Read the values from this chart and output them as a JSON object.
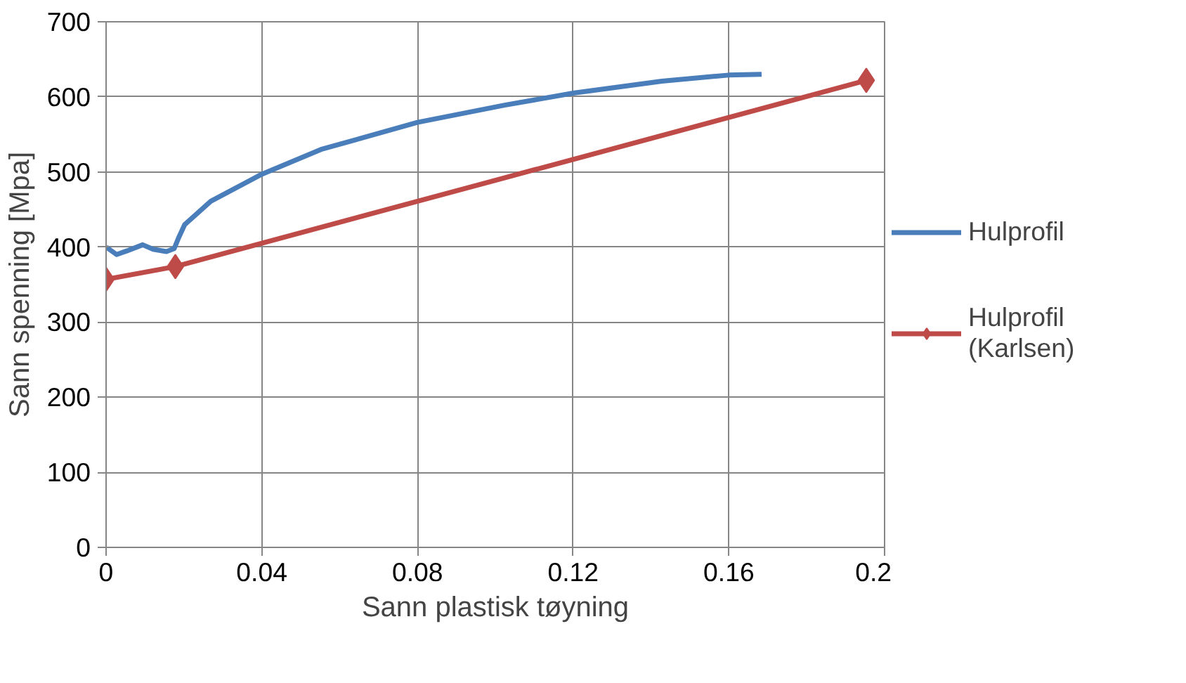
{
  "chart_data": {
    "type": "line",
    "xlabel": "Sann plastisk tøyning",
    "ylabel": "Sann spenning [Mpa]",
    "xlim": [
      0,
      0.2
    ],
    "xticks": [
      0,
      0.04,
      0.08,
      0.12,
      0.16,
      0.2
    ],
    "ylim": [
      0,
      700
    ],
    "yticks": [
      0,
      100,
      200,
      300,
      400,
      500,
      600,
      700
    ],
    "grid": true,
    "legend": "right",
    "series": [
      {
        "name": "Hulprofil",
        "color": "#4a7ebb",
        "marker": "none",
        "x": [
          0,
          0.0027,
          0.0054,
          0.0094,
          0.0121,
          0.0155,
          0.0175,
          0.0186,
          0.0202,
          0.0269,
          0.04,
          0.0552,
          0.08,
          0.1024,
          0.12,
          0.1428,
          0.16,
          0.1684
        ],
        "values": [
          400,
          390,
          395,
          403,
          397,
          394,
          398,
          412,
          430,
          461,
          497,
          530,
          566,
          589,
          605,
          621,
          629,
          630
        ]
      },
      {
        "name": "Hulprofil (Karlsen)",
        "color": "#be4b48",
        "marker": "diamond",
        "x": [
          0,
          0.0178,
          0.1953
        ],
        "values": [
          357,
          374,
          622
        ]
      }
    ]
  }
}
